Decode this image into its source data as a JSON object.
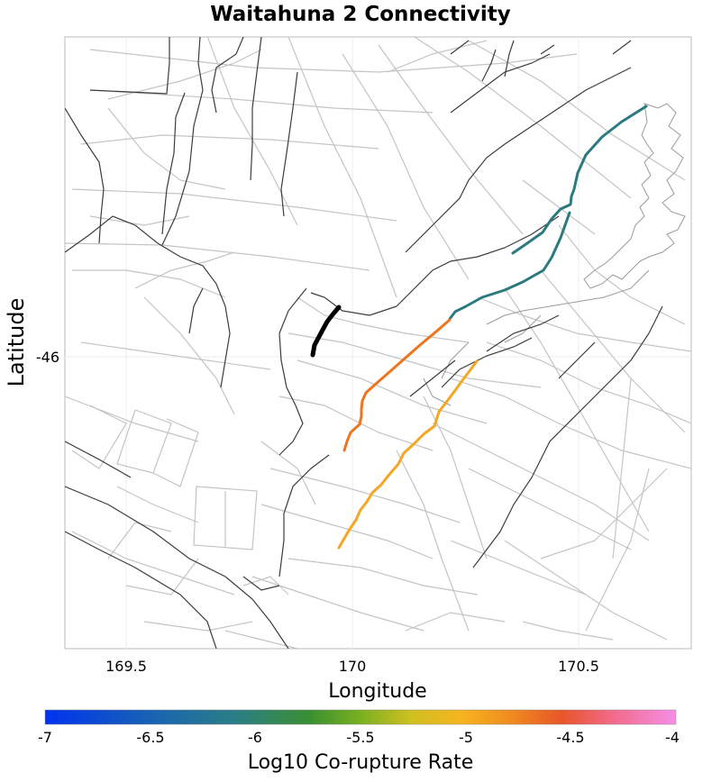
{
  "title": "Waitahuna 2 Connectivity",
  "axes": {
    "xlabel": "Longitude",
    "ylabel": "Latitude",
    "xticks": [
      "169.5",
      "170",
      "170.5"
    ],
    "yticks": [
      "-46"
    ]
  },
  "colorbar": {
    "label": "Log10 Co-rupture Rate",
    "ticks": [
      "-7",
      "-6.5",
      "-6",
      "-5.5",
      "-5",
      "-4.5",
      "-4"
    ],
    "range": [
      -7,
      -4
    ],
    "stops": [
      "#0033ee",
      "#1a66b0",
      "#2a7e86",
      "#3a9030",
      "#7ab020",
      "#cfc020",
      "#f7b420",
      "#f08a1f",
      "#e8552a",
      "#f26a8a",
      "#f590e8"
    ]
  },
  "colors": {
    "selected_fault": "#000000",
    "fault_teal": "#2a7a80",
    "fault_orange": "#ee7520",
    "fault_amber": "#f5a623",
    "background_faults": "#c4c4c4",
    "coastline": "#444444"
  },
  "legend_entries": []
}
